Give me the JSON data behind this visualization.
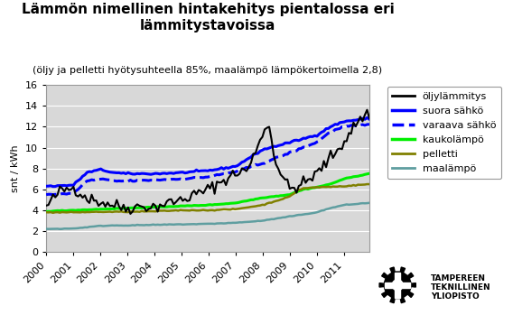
{
  "title": "Lämmön nimellinen hintakehitys pientalossa eri\nlämmitystavoissa",
  "subtitle": "(öljy ja pelletti hyötysuhteella 85%, maalämpö lämpökertoimella 2,8)",
  "ylabel": "snt / kWh",
  "ylim": [
    0,
    16
  ],
  "yticks": [
    0,
    2,
    4,
    6,
    8,
    10,
    12,
    14,
    16
  ],
  "xtick_years": [
    2000,
    2001,
    2002,
    2003,
    2004,
    2005,
    2006,
    2007,
    2008,
    2009,
    2010,
    2011
  ],
  "legend_labels": [
    "öljylämmitys",
    "suora sähkö",
    "varaava sähkö",
    "kaukolämpö",
    "pelletti",
    "maalämpö"
  ],
  "oil_color": "#000000",
  "direct_elec_color": "#0000FF",
  "storage_elec_color": "#0000FF",
  "district_color": "#00EE00",
  "pellet_color": "#808000",
  "ground_color": "#5F9EA0",
  "background_color": "#FFFFFF",
  "plot_bg": "#D8D8D8",
  "grid_color": "#FFFFFF",
  "title_fontsize": 11,
  "subtitle_fontsize": 8,
  "axis_fontsize": 8,
  "legend_fontsize": 8,
  "ttu_logo_text": "TAMPEREEN\nTEKNILLINEN\nYLIOPISTO"
}
